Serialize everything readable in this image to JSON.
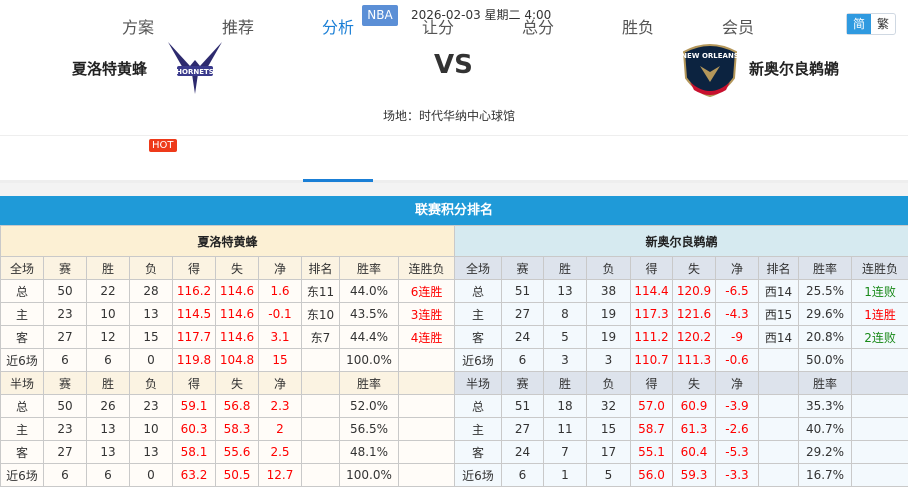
{
  "header": {
    "league": "NBA",
    "datetime": "2026-02-03 星期二 4:00",
    "lang": [
      "简",
      "繁"
    ],
    "home": "夏洛特黄蜂",
    "away": "新奥尔良鹈鹕",
    "vs": "VS",
    "venue": "场地：时代华纳中心球馆"
  },
  "nav": {
    "tabs": [
      "方案",
      "推荐",
      "分析",
      "让分",
      "总分",
      "胜负",
      "会员"
    ],
    "active": "分析",
    "hot_badge": "HOT"
  },
  "section_title": "联赛积分排名",
  "colors": {
    "accent": "#1f9ad8",
    "red": "#ff0000",
    "green": "#1a8a1a"
  },
  "tables": [
    {
      "team": "夏洛特黄蜂",
      "full_header": [
        "全场",
        "赛",
        "胜",
        "负",
        "得",
        "失",
        "净",
        "排名",
        "胜率",
        "连胜负"
      ],
      "full_rows": [
        [
          "总",
          "50",
          "22",
          "28",
          "116.2",
          "114.6",
          "1.6",
          "东11",
          "44.0%",
          "6连胜"
        ],
        [
          "主",
          "23",
          "10",
          "13",
          "114.5",
          "114.6",
          "-0.1",
          "东10",
          "43.5%",
          "3连胜"
        ],
        [
          "客",
          "27",
          "12",
          "15",
          "117.7",
          "114.6",
          "3.1",
          "东7",
          "44.4%",
          "4连胜"
        ],
        [
          "近6场",
          "6",
          "6",
          "0",
          "119.8",
          "104.8",
          "15",
          "",
          "100.0%",
          ""
        ]
      ],
      "half_header": [
        "半场",
        "赛",
        "胜",
        "负",
        "得",
        "失",
        "净",
        "",
        "胜率",
        ""
      ],
      "half_rows": [
        [
          "总",
          "50",
          "26",
          "23",
          "59.1",
          "56.8",
          "2.3",
          "",
          "52.0%",
          ""
        ],
        [
          "主",
          "23",
          "13",
          "10",
          "60.3",
          "58.3",
          "2",
          "",
          "56.5%",
          ""
        ],
        [
          "客",
          "27",
          "13",
          "13",
          "58.1",
          "55.6",
          "2.5",
          "",
          "48.1%",
          ""
        ],
        [
          "近6场",
          "6",
          "6",
          "0",
          "63.2",
          "50.5",
          "12.7",
          "",
          "100.0%",
          ""
        ]
      ]
    },
    {
      "team": "新奥尔良鹈鹕",
      "full_header": [
        "全场",
        "赛",
        "胜",
        "负",
        "得",
        "失",
        "净",
        "排名",
        "胜率",
        "连胜负"
      ],
      "full_rows": [
        [
          "总",
          "51",
          "13",
          "38",
          "114.4",
          "120.9",
          "-6.5",
          "西14",
          "25.5%",
          "1连败"
        ],
        [
          "主",
          "27",
          "8",
          "19",
          "117.3",
          "121.6",
          "-4.3",
          "西15",
          "29.6%",
          "1连胜"
        ],
        [
          "客",
          "24",
          "5",
          "19",
          "111.2",
          "120.2",
          "-9",
          "西14",
          "20.8%",
          "2连败"
        ],
        [
          "近6场",
          "6",
          "3",
          "3",
          "110.7",
          "111.3",
          "-0.6",
          "",
          "50.0%",
          ""
        ]
      ],
      "half_header": [
        "半场",
        "赛",
        "胜",
        "负",
        "得",
        "失",
        "净",
        "",
        "胜率",
        ""
      ],
      "half_rows": [
        [
          "总",
          "51",
          "18",
          "32",
          "57.0",
          "60.9",
          "-3.9",
          "",
          "35.3%",
          ""
        ],
        [
          "主",
          "27",
          "11",
          "15",
          "58.7",
          "61.3",
          "-2.6",
          "",
          "40.7%",
          ""
        ],
        [
          "客",
          "24",
          "7",
          "17",
          "55.1",
          "60.4",
          "-5.3",
          "",
          "29.2%",
          ""
        ],
        [
          "近6场",
          "6",
          "1",
          "5",
          "56.0",
          "59.3",
          "-3.3",
          "",
          "16.7%",
          ""
        ]
      ]
    }
  ]
}
